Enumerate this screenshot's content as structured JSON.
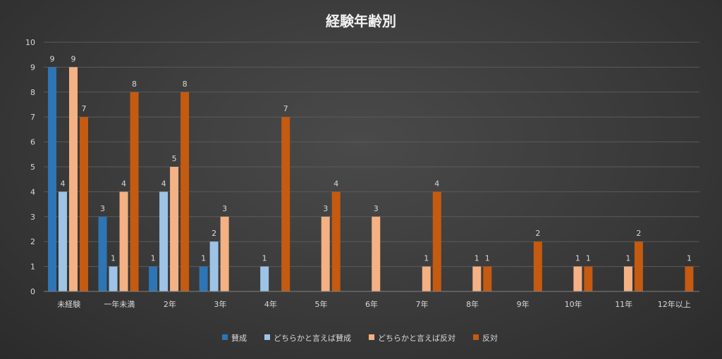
{
  "chart_data": {
    "type": "bar",
    "title": "経験年齢別",
    "xlabel": "",
    "ylabel": "",
    "ylim": [
      0,
      10
    ],
    "yticks": [
      0,
      1,
      2,
      3,
      4,
      5,
      6,
      7,
      8,
      9,
      10
    ],
    "grid": true,
    "legend_position": "bottom",
    "categories": [
      "未経験",
      "一年未満",
      "2年",
      "3年",
      "4年",
      "5年",
      "6年",
      "7年",
      "8年",
      "9年",
      "10年",
      "11年",
      "12年以上"
    ],
    "series": [
      {
        "name": "賛成",
        "color": "#2e75b6",
        "values": [
          9,
          3,
          1,
          1,
          0,
          0,
          0,
          0,
          0,
          0,
          0,
          0,
          0
        ]
      },
      {
        "name": "どちらかと言えば賛成",
        "color": "#9dc3e6",
        "values": [
          4,
          1,
          4,
          2,
          1,
          0,
          0,
          0,
          0,
          0,
          0,
          0,
          0
        ]
      },
      {
        "name": "どちらかと言えば反対",
        "color": "#f4b183",
        "values": [
          9,
          4,
          5,
          3,
          0,
          3,
          3,
          1,
          1,
          0,
          1,
          1,
          0
        ]
      },
      {
        "name": "反対",
        "color": "#c55a11",
        "values": [
          7,
          8,
          8,
          0,
          7,
          4,
          0,
          4,
          1,
          2,
          1,
          2,
          1
        ]
      }
    ]
  }
}
